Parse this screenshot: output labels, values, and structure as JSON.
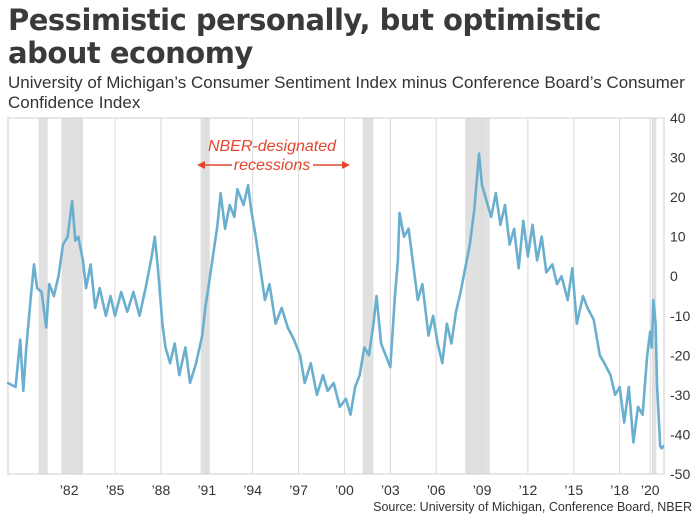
{
  "header": {
    "title": "Pessimistic personally, but optimistic about economy",
    "subtitle": "University of Michigan’s Consumer Sentiment Index minus Conference Board’s Consumer Confidence Index"
  },
  "source": "Source: University of Michigan, Conference Board, NBER",
  "colors": {
    "line": "#6bafcf",
    "recession": "#e0e0e0",
    "annotation": "#e2462c",
    "grid": "#d9d9d9"
  },
  "chart_data": {
    "type": "line",
    "title": "Pessimistic personally, but optimistic about economy",
    "subtitle": "University of Michigan’s Consumer Sentiment Index minus Conference Board’s Consumer Confidence Index",
    "xlabel": "",
    "ylabel": "",
    "ylim": [
      -50,
      40
    ],
    "yticks": [
      40,
      30,
      20,
      10,
      0,
      -10,
      -20,
      -30,
      -40,
      -50
    ],
    "xlim": [
      1978.0,
      2020.9
    ],
    "xticks": [
      {
        "x": 1982,
        "label": "’82"
      },
      {
        "x": 1985,
        "label": "’85"
      },
      {
        "x": 1988,
        "label": "’88"
      },
      {
        "x": 1991,
        "label": "’91"
      },
      {
        "x": 1994,
        "label": "’94"
      },
      {
        "x": 1997,
        "label": "’97"
      },
      {
        "x": 2000,
        "label": "’00"
      },
      {
        "x": 2003,
        "label": "’03"
      },
      {
        "x": 2006,
        "label": "’06"
      },
      {
        "x": 2009,
        "label": "’09"
      },
      {
        "x": 2012,
        "label": "’12"
      },
      {
        "x": 2015,
        "label": "’15"
      },
      {
        "x": 2018,
        "label": "’18"
      },
      {
        "x": 2020,
        "label": "’20"
      }
    ],
    "grid": "vertical",
    "y_axis_position": "right",
    "recessions": [
      [
        1980.0,
        1980.6
      ],
      [
        1981.5,
        1982.9
      ],
      [
        1990.6,
        1991.2
      ],
      [
        2001.2,
        2001.9
      ],
      [
        2007.9,
        2009.5
      ],
      [
        2020.1,
        2020.4
      ]
    ],
    "annotation": {
      "text_lines": [
        "NBER-designated",
        "recessions"
      ]
    },
    "series": [
      {
        "points": [
          [
            1978.0,
            -27
          ],
          [
            1978.5,
            -28
          ],
          [
            1978.8,
            -16
          ],
          [
            1979.0,
            -29
          ],
          [
            1979.2,
            -18
          ],
          [
            1979.5,
            -5
          ],
          [
            1979.7,
            3
          ],
          [
            1979.9,
            -3
          ],
          [
            1980.2,
            -4
          ],
          [
            1980.5,
            -13
          ],
          [
            1980.7,
            -2
          ],
          [
            1981.0,
            -5
          ],
          [
            1981.3,
            0
          ],
          [
            1981.6,
            8
          ],
          [
            1981.9,
            10
          ],
          [
            1982.2,
            19
          ],
          [
            1982.4,
            9
          ],
          [
            1982.6,
            10
          ],
          [
            1982.9,
            4
          ],
          [
            1983.1,
            -3
          ],
          [
            1983.4,
            3
          ],
          [
            1983.7,
            -8
          ],
          [
            1984.0,
            -3
          ],
          [
            1984.4,
            -10
          ],
          [
            1984.7,
            -5
          ],
          [
            1985.0,
            -10
          ],
          [
            1985.4,
            -4
          ],
          [
            1985.8,
            -9
          ],
          [
            1986.2,
            -4
          ],
          [
            1986.6,
            -10
          ],
          [
            1987.0,
            -3
          ],
          [
            1987.4,
            5
          ],
          [
            1987.6,
            10
          ],
          [
            1987.8,
            2
          ],
          [
            1988.1,
            -12
          ],
          [
            1988.3,
            -18
          ],
          [
            1988.6,
            -22
          ],
          [
            1988.9,
            -17
          ],
          [
            1989.2,
            -25
          ],
          [
            1989.6,
            -18
          ],
          [
            1989.9,
            -27
          ],
          [
            1990.3,
            -22
          ],
          [
            1990.7,
            -15
          ],
          [
            1990.9,
            -8
          ],
          [
            1991.1,
            -3
          ],
          [
            1991.4,
            5
          ],
          [
            1991.7,
            13
          ],
          [
            1991.9,
            21
          ],
          [
            1992.2,
            12
          ],
          [
            1992.5,
            18
          ],
          [
            1992.8,
            15
          ],
          [
            1993.0,
            22
          ],
          [
            1993.4,
            18
          ],
          [
            1993.7,
            23
          ],
          [
            1993.9,
            17
          ],
          [
            1994.2,
            10
          ],
          [
            1994.5,
            2
          ],
          [
            1994.8,
            -6
          ],
          [
            1995.1,
            -2
          ],
          [
            1995.5,
            -12
          ],
          [
            1995.9,
            -8
          ],
          [
            1996.3,
            -13
          ],
          [
            1996.7,
            -16
          ],
          [
            1997.1,
            -20
          ],
          [
            1997.4,
            -27
          ],
          [
            1997.8,
            -22
          ],
          [
            1998.2,
            -30
          ],
          [
            1998.6,
            -25
          ],
          [
            1998.9,
            -29
          ],
          [
            1999.3,
            -27
          ],
          [
            1999.7,
            -33
          ],
          [
            2000.1,
            -31
          ],
          [
            2000.4,
            -35
          ],
          [
            2000.7,
            -28
          ],
          [
            2001.0,
            -25
          ],
          [
            2001.3,
            -18
          ],
          [
            2001.6,
            -20
          ],
          [
            2001.9,
            -12
          ],
          [
            2002.1,
            -5
          ],
          [
            2002.4,
            -17
          ],
          [
            2002.7,
            -20
          ],
          [
            2003.0,
            -23
          ],
          [
            2003.3,
            -5
          ],
          [
            2003.5,
            4
          ],
          [
            2003.6,
            16
          ],
          [
            2003.9,
            10
          ],
          [
            2004.2,
            12
          ],
          [
            2004.5,
            3
          ],
          [
            2004.8,
            -6
          ],
          [
            2005.1,
            -2
          ],
          [
            2005.5,
            -15
          ],
          [
            2005.8,
            -10
          ],
          [
            2006.1,
            -17
          ],
          [
            2006.4,
            -22
          ],
          [
            2006.7,
            -12
          ],
          [
            2007.0,
            -17
          ],
          [
            2007.3,
            -9
          ],
          [
            2007.6,
            -4
          ],
          [
            2007.9,
            2
          ],
          [
            2008.2,
            8
          ],
          [
            2008.5,
            17
          ],
          [
            2008.8,
            31
          ],
          [
            2009.0,
            23
          ],
          [
            2009.3,
            19
          ],
          [
            2009.6,
            15
          ],
          [
            2009.9,
            21
          ],
          [
            2010.2,
            13
          ],
          [
            2010.5,
            18
          ],
          [
            2010.8,
            8
          ],
          [
            2011.1,
            12
          ],
          [
            2011.4,
            2
          ],
          [
            2011.7,
            14
          ],
          [
            2012.0,
            5
          ],
          [
            2012.3,
            13
          ],
          [
            2012.6,
            4
          ],
          [
            2012.9,
            10
          ],
          [
            2013.2,
            1
          ],
          [
            2013.6,
            3
          ],
          [
            2013.9,
            -2
          ],
          [
            2014.2,
            0
          ],
          [
            2014.6,
            -6
          ],
          [
            2014.9,
            2
          ],
          [
            2015.2,
            -12
          ],
          [
            2015.6,
            -5
          ],
          [
            2015.9,
            -8
          ],
          [
            2016.3,
            -11
          ],
          [
            2016.7,
            -20
          ],
          [
            2017.0,
            -22
          ],
          [
            2017.4,
            -25
          ],
          [
            2017.7,
            -30
          ],
          [
            2018.0,
            -28
          ],
          [
            2018.3,
            -37
          ],
          [
            2018.6,
            -28
          ],
          [
            2018.9,
            -42
          ],
          [
            2019.2,
            -33
          ],
          [
            2019.5,
            -35
          ],
          [
            2019.8,
            -20
          ],
          [
            2020.0,
            -14
          ],
          [
            2020.1,
            -18
          ],
          [
            2020.2,
            -6
          ],
          [
            2020.35,
            -12
          ],
          [
            2020.45,
            -28
          ],
          [
            2020.55,
            -35
          ],
          [
            2020.65,
            -43
          ],
          [
            2020.75,
            -43.5
          ],
          [
            2020.85,
            -43
          ]
        ]
      }
    ]
  }
}
